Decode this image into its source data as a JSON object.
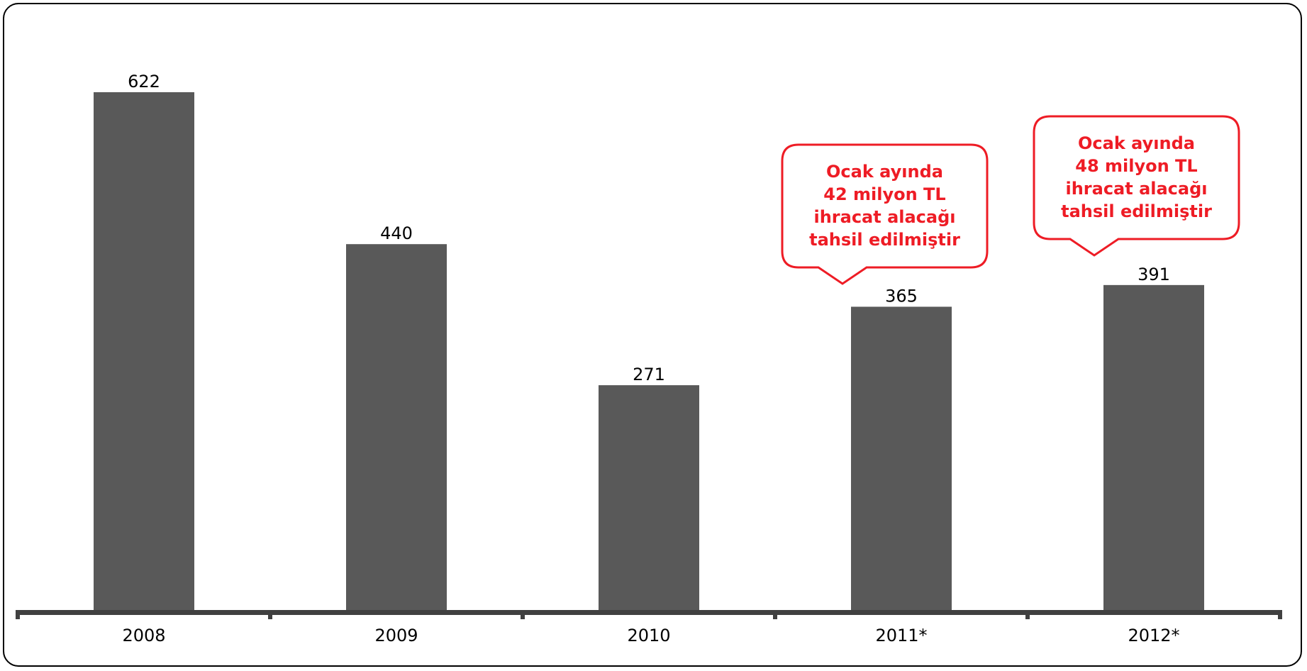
{
  "chart_data": {
    "type": "bar",
    "categories": [
      "2008",
      "2009",
      "2010",
      "2011*",
      "2012*"
    ],
    "values": [
      622,
      440,
      271,
      365,
      391
    ],
    "data_labels": [
      "622",
      "440",
      "271",
      "365",
      "391"
    ],
    "title": "",
    "xlabel": "",
    "ylabel": "",
    "ylim": [
      0,
      622
    ],
    "grid": false,
    "legend": "none",
    "bar_color": "#595959",
    "axis_color": "#404040"
  },
  "annotations": [
    {
      "target_category": "2011*",
      "lines": [
        "Ocak ayında",
        "42 milyon TL",
        "ihracat alacağı",
        "tahsil edilmiştir"
      ],
      "color": "#ee1c25"
    },
    {
      "target_category": "2012*",
      "lines": [
        "Ocak ayında",
        "48 milyon TL",
        "ihracat alacağı",
        "tahsil edilmiştir"
      ],
      "color": "#ee1c25"
    }
  ]
}
